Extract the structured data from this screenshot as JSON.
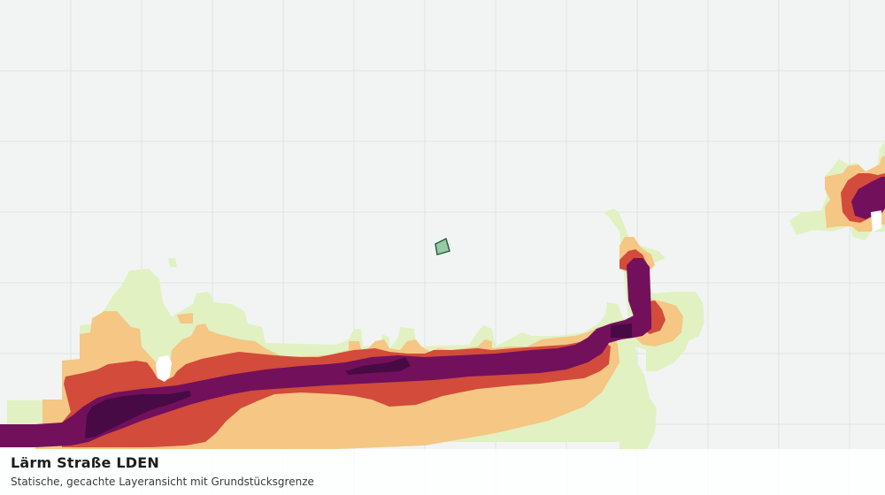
{
  "map": {
    "layer_title": "Lärm Straße LDEN",
    "layer_subtitle": "Statische, gecachte Layeransicht mit Grundstücksgrenze",
    "colors": {
      "background": "#f2f4f3",
      "grid": "#dfe3e1",
      "band_lowest": "#e1f1c2",
      "band_low": "#f5c684",
      "band_mid": "#d24b3b",
      "band_high": "#72105c",
      "band_highest": "#470a45",
      "parcel_fill": "#98caa6",
      "parcel_stroke": "#1d5e35"
    }
  }
}
